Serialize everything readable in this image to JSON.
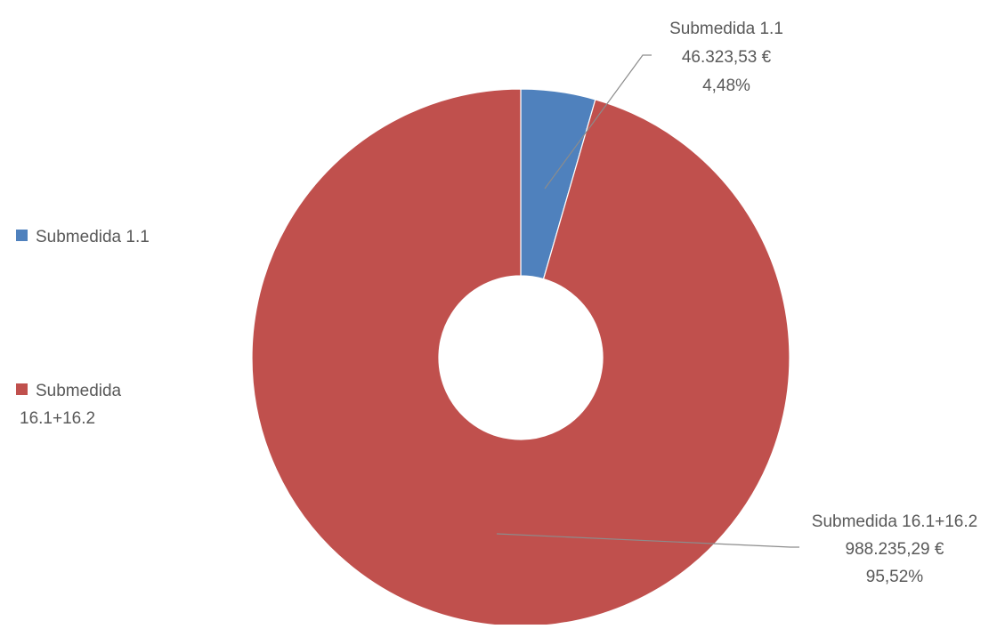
{
  "chart_data": {
    "type": "pie",
    "variant": "doughnut",
    "title": "",
    "categories": [
      "Submedida 1.1",
      "Submedida 16.1+16.2"
    ],
    "values": [
      46323.53,
      988235.29
    ],
    "percentages": [
      4.48,
      95.52
    ],
    "colors": [
      "#4f81bd",
      "#c0504d"
    ],
    "legend": {
      "position": "left",
      "entries": [
        {
          "label_lines": [
            "Submedida 1.1"
          ]
        },
        {
          "label_lines": [
            "Submedida",
            "16.1+16.2"
          ]
        }
      ]
    },
    "data_labels": [
      {
        "lines": [
          "Submedida 1.1",
          "46.323,53 €",
          "4,48%"
        ]
      },
      {
        "lines": [
          "Submedida 16.1+16.2",
          "988.235,29 €",
          "95,52%"
        ]
      }
    ]
  }
}
